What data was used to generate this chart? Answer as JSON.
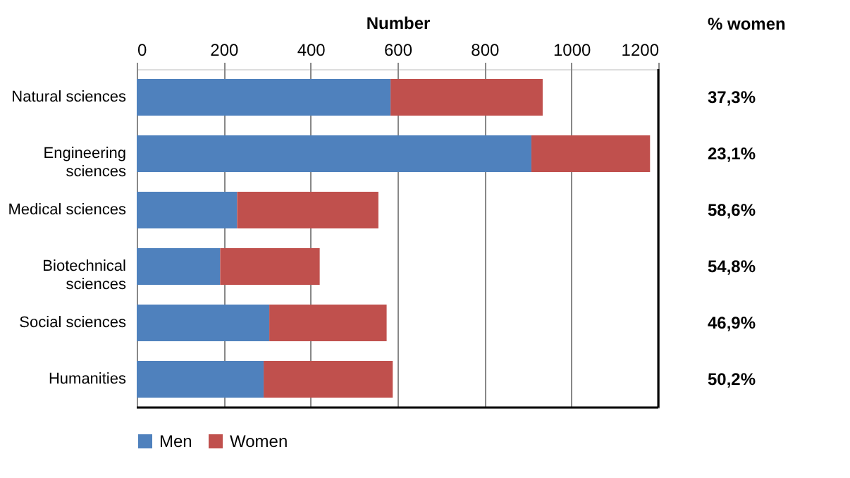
{
  "chart_data": {
    "type": "bar",
    "orientation": "horizontal",
    "stacked": true,
    "xlabel": "Number",
    "categories": [
      "Natural sciences",
      "Engineering sciences",
      "Medical sciences",
      "Biotechnical sciences",
      "Social sciences",
      "Humanities"
    ],
    "series": [
      {
        "name": "Men",
        "color": "#4f81bd",
        "values": [
          584,
          908,
          231,
          192,
          305,
          292
        ]
      },
      {
        "name": "Women",
        "color": "#c0504d",
        "values": [
          350,
          273,
          325,
          229,
          270,
          297
        ]
      }
    ],
    "xlim": [
      0,
      1200
    ],
    "xticks": [
      0,
      200,
      400,
      600,
      800,
      1000,
      1200
    ],
    "grid": "x",
    "legend": "bottom",
    "annotations": [
      "% women",
      "37,3%",
      "23,1%",
      "58,6%",
      "54,8%",
      "46,9%",
      "50,2%"
    ]
  }
}
